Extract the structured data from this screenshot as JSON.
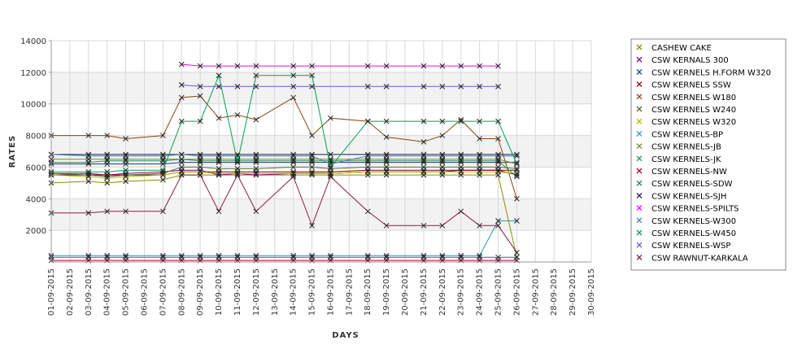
{
  "chart_data": {
    "type": "line",
    "title": "",
    "xlabel": "DAYS",
    "ylabel": "RATES",
    "ylim": [
      0,
      14000
    ],
    "y_ticks": [
      "2000",
      "4000",
      "6000",
      "8000",
      "10000",
      "12000",
      "14000"
    ],
    "grid": true,
    "legend_position": "right",
    "x": [
      "01-09-2015",
      "02-09-2015",
      "03-09-2015",
      "04-09-2015",
      "05-09-2015",
      "06-09-2015",
      "07-09-2015",
      "08-09-2015",
      "09-09-2015",
      "10-09-2015",
      "11-09-2015",
      "12-09-2015",
      "13-09-2015",
      "14-09-2015",
      "15-09-2015",
      "16-09-2015",
      "17-09-2015",
      "18-09-2015",
      "19-09-2015",
      "20-09-2015",
      "21-09-2015",
      "22-09-2015",
      "23-09-2015",
      "24-09-2015",
      "25-09-2015",
      "26-09-2015",
      "27-09-2015",
      "28-09-2015",
      "29-09-2015",
      "30-09-2015"
    ],
    "series": [
      {
        "name": "CASHEW CAKE",
        "color": "#8b8b00",
        "values": [
          5000,
          null,
          5100,
          5000,
          5100,
          null,
          5200,
          5500,
          5500,
          5500,
          5500,
          5500,
          null,
          5500,
          5500,
          5500,
          null,
          5500,
          5500,
          null,
          5500,
          5500,
          5500,
          5500,
          5500,
          300,
          null,
          null,
          null,
          null
        ]
      },
      {
        "name": "CSW KERNALS 300",
        "color": "#800080",
        "values": [
          5600,
          null,
          5600,
          5500,
          5600,
          null,
          5700,
          5800,
          5800,
          5500,
          5600,
          5500,
          null,
          5600,
          5600,
          5600,
          null,
          5700,
          5700,
          null,
          5700,
          5700,
          5800,
          5800,
          5800,
          5500,
          null,
          null,
          null,
          null
        ]
      },
      {
        "name": "CSW KERNELS H.FORM W320",
        "color": "#1f3f8f",
        "values": [
          6200,
          null,
          6200,
          6200,
          6200,
          null,
          6200,
          6300,
          6300,
          6300,
          6300,
          6300,
          null,
          6300,
          6300,
          6300,
          null,
          6300,
          6300,
          null,
          6300,
          6300,
          6300,
          6300,
          6300,
          6300,
          null,
          null,
          null,
          null
        ]
      },
      {
        "name": "CSW KERNELS SSW",
        "color": "#800000",
        "values": [
          5500,
          null,
          5500,
          5500,
          5500,
          null,
          5500,
          5700,
          5700,
          5700,
          5700,
          5700,
          null,
          5700,
          5700,
          5700,
          null,
          5800,
          5800,
          null,
          5800,
          5800,
          5800,
          5800,
          5800,
          5800,
          null,
          null,
          null,
          null
        ]
      },
      {
        "name": "CSW KERNELS W180",
        "color": "#8b4513",
        "values": [
          8000,
          null,
          8000,
          8000,
          7800,
          null,
          8000,
          10400,
          10500,
          9100,
          9300,
          9000,
          null,
          10400,
          8000,
          9100,
          null,
          8900,
          7900,
          null,
          7600,
          8000,
          9000,
          7800,
          7800,
          4000,
          null,
          null,
          null,
          null
        ]
      },
      {
        "name": "CSW KERNELS W240",
        "color": "#556b2f",
        "values": [
          5600,
          null,
          5500,
          5400,
          5500,
          null,
          5600,
          6000,
          6000,
          5900,
          5900,
          5900,
          null,
          6000,
          6000,
          5900,
          null,
          6000,
          6000,
          null,
          6000,
          6000,
          6000,
          6000,
          6000,
          5900,
          null,
          null,
          null,
          null
        ]
      },
      {
        "name": "CSW KERNELS W320",
        "color": "#b8b800",
        "values": [
          5500,
          null,
          5400,
          5300,
          5400,
          null,
          5500,
          5700,
          5700,
          5600,
          5600,
          5600,
          null,
          5600,
          5600,
          5600,
          null,
          5700,
          5700,
          null,
          5700,
          5700,
          5700,
          5700,
          5700,
          5600,
          null,
          null,
          null,
          null
        ]
      },
      {
        "name": "CSW KERNELS-BP",
        "color": "#2b9bb0",
        "values": [
          400,
          null,
          400,
          400,
          400,
          null,
          400,
          400,
          400,
          400,
          400,
          400,
          null,
          400,
          400,
          400,
          null,
          400,
          400,
          null,
          400,
          400,
          400,
          400,
          2600,
          2600,
          null,
          null,
          null,
          null
        ]
      },
      {
        "name": "CSW KERNELS-JB",
        "color": "#6b8e23",
        "values": [
          6500,
          null,
          6500,
          6500,
          6500,
          null,
          6500,
          6500,
          6500,
          6500,
          6500,
          6500,
          null,
          6500,
          6500,
          6500,
          null,
          6500,
          6500,
          null,
          6500,
          6500,
          6500,
          6500,
          6500,
          6200,
          null,
          null,
          null,
          null
        ]
      },
      {
        "name": "CSW KERNELS-JK",
        "color": "#2e8b57",
        "values": [
          6300,
          null,
          6300,
          6400,
          6400,
          null,
          6400,
          6500,
          6400,
          6400,
          6400,
          6400,
          null,
          6400,
          6400,
          6400,
          null,
          6400,
          6400,
          null,
          6400,
          6400,
          6400,
          6400,
          6400,
          5400,
          null,
          null,
          null,
          null
        ]
      },
      {
        "name": "CSW KERNELS-NW",
        "color": "#b0003a",
        "values": [
          100,
          null,
          100,
          100,
          100,
          null,
          100,
          100,
          100,
          100,
          100,
          100,
          null,
          100,
          100,
          100,
          null,
          100,
          100,
          null,
          100,
          100,
          100,
          100,
          100,
          100,
          null,
          null,
          null,
          null
        ]
      },
      {
        "name": "CSW KERNELS-SDW",
        "color": "#2f6f6f",
        "values": [
          300,
          null,
          300,
          300,
          300,
          null,
          300,
          300,
          300,
          300,
          300,
          300,
          null,
          300,
          300,
          300,
          null,
          300,
          300,
          null,
          300,
          300,
          300,
          300,
          300,
          300,
          null,
          null,
          null,
          null
        ]
      },
      {
        "name": "CSW KERNELS-SJH",
        "color": "#1a1a5e",
        "values": [
          6800,
          null,
          6800,
          6800,
          6800,
          null,
          6800,
          6800,
          6800,
          6800,
          6800,
          6800,
          null,
          6800,
          6800,
          6800,
          null,
          6800,
          6800,
          null,
          6800,
          6800,
          6800,
          6800,
          6800,
          6800,
          null,
          null,
          null,
          null
        ]
      },
      {
        "name": "CSW KERNELS-SPILTS",
        "color": "#ff00ff",
        "values": [
          null,
          null,
          null,
          null,
          null,
          null,
          null,
          12500,
          12400,
          12400,
          12400,
          12400,
          null,
          12400,
          12400,
          null,
          null,
          12400,
          12400,
          null,
          12400,
          12400,
          12400,
          12400,
          12400,
          null,
          null,
          null,
          null,
          null
        ]
      },
      {
        "name": "CSW KERNELS-W300",
        "color": "#4682b4",
        "values": [
          6800,
          null,
          6700,
          6700,
          6700,
          null,
          6700,
          6800,
          6700,
          6700,
          6700,
          6700,
          null,
          6700,
          6700,
          6200,
          null,
          6700,
          6700,
          null,
          6700,
          6700,
          6700,
          6700,
          6700,
          6700,
          null,
          null,
          null,
          null
        ]
      },
      {
        "name": "CSW KERNELS-W450",
        "color": "#00a050",
        "values": [
          5700,
          null,
          5700,
          5700,
          5800,
          null,
          5800,
          8900,
          8900,
          11800,
          6300,
          11800,
          null,
          11800,
          11800,
          6000,
          null,
          8900,
          8900,
          null,
          8900,
          8900,
          8900,
          8900,
          8900,
          6200,
          null,
          null,
          null,
          null
        ]
      },
      {
        "name": "CSW KERNELS-WSP",
        "color": "#6a5acd",
        "values": [
          null,
          null,
          null,
          null,
          null,
          null,
          null,
          11200,
          11100,
          11100,
          11100,
          11100,
          null,
          11100,
          11100,
          null,
          null,
          11100,
          11100,
          null,
          11100,
          11100,
          11100,
          11100,
          11100,
          null,
          null,
          null,
          null,
          null
        ]
      },
      {
        "name": "CSW RAWNUT-KARKALA",
        "color": "#8b1a4a",
        "values": [
          3100,
          null,
          3100,
          3200,
          3200,
          null,
          3200,
          5500,
          5500,
          3200,
          5500,
          3200,
          null,
          5400,
          2300,
          5400,
          null,
          3200,
          2300,
          null,
          2300,
          2300,
          3200,
          2300,
          2300,
          600,
          null,
          null,
          null,
          null
        ]
      }
    ]
  }
}
